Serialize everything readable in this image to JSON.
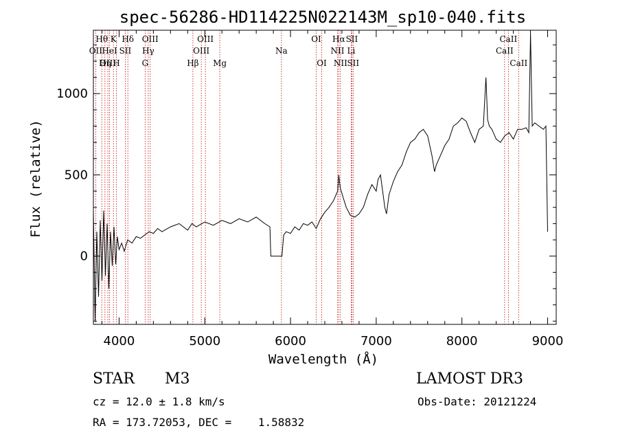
{
  "chart_data": {
    "type": "line",
    "title": "spec-56286-HD114225N022143M_sp10-040.fits",
    "xlabel": "Wavelength (Å)",
    "ylabel": "Flux (relative)",
    "xlim": [
      3700,
      9100
    ],
    "ylim": [
      -420,
      1390
    ],
    "xticks": [
      4000,
      5000,
      6000,
      7000,
      8000,
      9000
    ],
    "yticks": [
      0,
      500,
      1000
    ],
    "series": [
      {
        "name": "flux",
        "x": [
          3700,
          3720,
          3740,
          3760,
          3780,
          3800,
          3820,
          3840,
          3860,
          3880,
          3900,
          3920,
          3940,
          3960,
          3980,
          4000,
          4030,
          4060,
          4100,
          4150,
          4200,
          4250,
          4300,
          4350,
          4400,
          4450,
          4500,
          4600,
          4700,
          4800,
          4850,
          4900,
          5000,
          5100,
          5200,
          5300,
          5400,
          5500,
          5600,
          5700,
          5760,
          5770,
          5900,
          5920,
          5950,
          6000,
          6050,
          6100,
          6150,
          6200,
          6250,
          6300,
          6350,
          6400,
          6450,
          6500,
          6550,
          6563,
          6580,
          6620,
          6650,
          6700,
          6750,
          6800,
          6850,
          6900,
          6950,
          7000,
          7020,
          7050,
          7100,
          7120,
          7150,
          7200,
          7250,
          7300,
          7350,
          7400,
          7450,
          7500,
          7550,
          7600,
          7650,
          7680,
          7700,
          7750,
          7800,
          7850,
          7900,
          7950,
          8000,
          8050,
          8100,
          8150,
          8200,
          8250,
          8280,
          8300,
          8320,
          8350,
          8400,
          8450,
          8500,
          8550,
          8600,
          8650,
          8700,
          8750,
          8780,
          8800,
          8820,
          8850,
          8900,
          8950,
          8980,
          9000
        ],
        "y": [
          280,
          -400,
          150,
          -250,
          220,
          -150,
          280,
          -120,
          200,
          -200,
          150,
          -60,
          180,
          -50,
          120,
          40,
          80,
          30,
          100,
          80,
          120,
          110,
          130,
          150,
          140,
          170,
          150,
          180,
          200,
          160,
          200,
          180,
          210,
          190,
          220,
          200,
          230,
          210,
          240,
          200,
          180,
          0,
          0,
          130,
          150,
          140,
          180,
          160,
          200,
          190,
          210,
          170,
          230,
          270,
          300,
          340,
          400,
          500,
          420,
          350,
          300,
          250,
          240,
          260,
          300,
          380,
          440,
          400,
          470,
          500,
          300,
          260,
          380,
          460,
          520,
          560,
          640,
          700,
          720,
          760,
          780,
          740,
          620,
          520,
          560,
          620,
          680,
          720,
          800,
          820,
          850,
          830,
          760,
          700,
          780,
          800,
          1100,
          840,
          800,
          780,
          720,
          700,
          740,
          760,
          720,
          780,
          780,
          790,
          760,
          1370,
          800,
          820,
          800,
          780,
          800,
          150
        ]
      }
    ],
    "lines": [
      {
        "name": "Hθ",
        "x": 3798,
        "row": 1
      },
      {
        "name": "OII",
        "x": 3727,
        "row": 2
      },
      {
        "name": "OIII",
        "x": 3869,
        "row": 3
      },
      {
        "name": "Hη",
        "x": 3835,
        "row": 3
      },
      {
        "name": "HeI",
        "x": 3889,
        "row": 2
      },
      {
        "name": "K",
        "x": 3934,
        "row": 1
      },
      {
        "name": "H",
        "x": 3968,
        "row": 3
      },
      {
        "name": "SII",
        "x": 4072,
        "row": 2
      },
      {
        "name": "Hδ",
        "x": 4102,
        "row": 1
      },
      {
        "name": "OIII",
        "x": 4363,
        "row": 1
      },
      {
        "name": "Hγ",
        "x": 4340,
        "row": 2
      },
      {
        "name": "G",
        "x": 4304,
        "row": 3
      },
      {
        "name": "Hβ",
        "x": 4861,
        "row": 3
      },
      {
        "name": "OIII",
        "x": 5007,
        "row": 1
      },
      {
        "name": "OIII",
        "x": 4959,
        "row": 2
      },
      {
        "name": "Mg",
        "x": 5175,
        "row": 3
      },
      {
        "name": "Na",
        "x": 5894,
        "row": 2
      },
      {
        "name": "OI",
        "x": 6300,
        "row": 1
      },
      {
        "name": "OI",
        "x": 6364,
        "row": 3
      },
      {
        "name": "Hα",
        "x": 6563,
        "row": 1
      },
      {
        "name": "NII",
        "x": 6548,
        "row": 2
      },
      {
        "name": "NII",
        "x": 6583,
        "row": 3
      },
      {
        "name": "SII",
        "x": 6716,
        "row": 1
      },
      {
        "name": "Li",
        "x": 6708,
        "row": 2
      },
      {
        "name": "SII",
        "x": 6731,
        "row": 3
      },
      {
        "name": "CaII",
        "x": 8542,
        "row": 1
      },
      {
        "name": "CaII",
        "x": 8498,
        "row": 2
      },
      {
        "name": "CaII",
        "x": 8662,
        "row": 3
      }
    ],
    "colors": {
      "spectrum": "#000000",
      "line_markers": "#c00000",
      "axes": "#000000"
    }
  },
  "info": {
    "object_class": "STAR",
    "subclass": "M3",
    "survey": "LAMOST DR3",
    "cz": "cz = 12.0 ± 1.8 km/s",
    "obs_date": "Obs-Date: 20121224",
    "radec": "RA = 173.72053, DEC =    1.58832"
  }
}
